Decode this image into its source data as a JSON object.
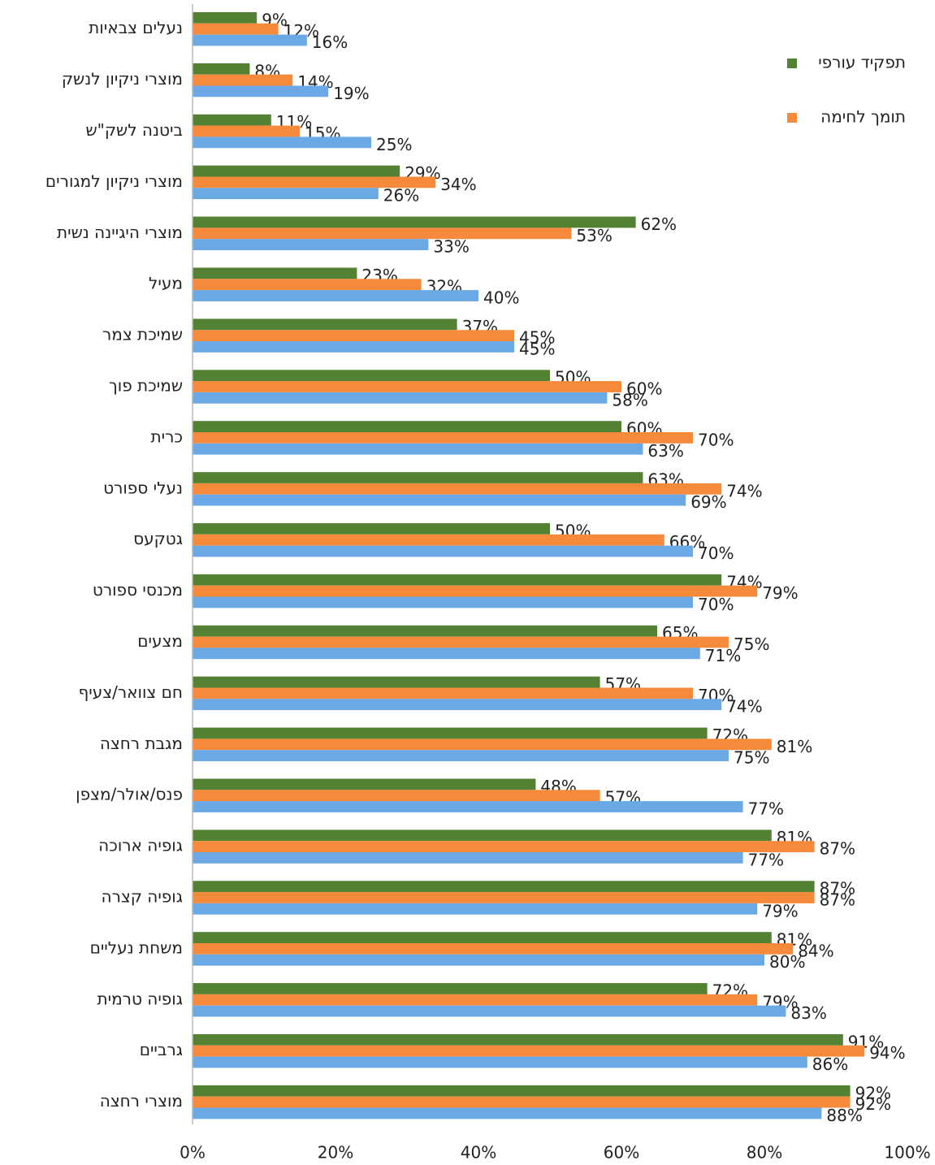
{
  "chart_data": {
    "type": "hbar",
    "categories": [
      "נעלים צבאיות",
      "מוצרי ניקיון לנשק",
      "ביטנה לשק\"ש",
      "מוצרי ניקיון למגורים",
      "מוצרי היגיינה נשית",
      "מעיל",
      "שמיכת צמר",
      "שמיכת פוך",
      "כרית",
      "נעלי ספורט",
      "גטקעס",
      "מכנסי ספורט",
      "מצעים",
      "חם צוואר/צעיף",
      "מגבת רחצה",
      "פנס/אולר/מצפן",
      "גופיה ארוכה",
      "גופיה קצרה",
      "משחת נעליים",
      "גופיה טרמית",
      "גרביים",
      "מוצרי רחצה"
    ],
    "series": [
      {
        "name": "תפקיד עורפי",
        "color": "#548235",
        "values": [
          9,
          8,
          11,
          29,
          62,
          23,
          37,
          50,
          60,
          63,
          50,
          74,
          65,
          57,
          72,
          48,
          81,
          87,
          81,
          72,
          91,
          92
        ],
        "value_labels": [
          "9%",
          "8%",
          "11%",
          "29%",
          "62%",
          "23%",
          "37%",
          "50%",
          "60%",
          "63%",
          "50%",
          "74%",
          "65%",
          "57%",
          "72%",
          "48%",
          "81%",
          "87%",
          "81%",
          "72%",
          "91%",
          "92%"
        ]
      },
      {
        "name": "תומך לחימה",
        "color": "#f58a3b",
        "values": [
          12,
          14,
          15,
          34,
          53,
          32,
          45,
          60,
          70,
          74,
          66,
          79,
          75,
          70,
          81,
          57,
          87,
          87,
          84,
          79,
          94,
          92
        ],
        "value_labels": [
          "12%",
          "14%",
          "15%",
          "34%",
          "53%",
          "32%",
          "45%",
          "60%",
          "70%",
          "74%",
          "66%",
          "79%",
          "75%",
          "70%",
          "81%",
          "57%",
          "87%",
          "87%",
          "84%",
          "79%",
          "94%",
          "92%"
        ]
      },
      {
        "color": "#6aa8e6",
        "values": [
          16,
          19,
          25,
          26,
          33,
          40,
          45,
          58,
          63,
          69,
          70,
          70,
          71,
          74,
          75,
          77,
          77,
          79,
          80,
          83,
          86,
          88
        ],
        "value_labels": [
          "16%",
          "19%",
          "25%",
          "26%",
          "33%",
          "40%",
          "45%",
          "58%",
          "63%",
          "69%",
          "70%",
          "70%",
          "71%",
          "74%",
          "75%",
          "77%",
          "77%",
          "79%",
          "80%",
          "83%",
          "86%",
          "88%"
        ]
      }
    ],
    "xlim": [
      0,
      100
    ],
    "xticks": [
      {
        "value": 0,
        "label": "0%"
      },
      {
        "value": 20,
        "label": "20%"
      },
      {
        "value": 40,
        "label": "40%"
      },
      {
        "value": 60,
        "label": "60%"
      },
      {
        "value": 80,
        "label": "80%"
      },
      {
        "value": 100,
        "label": "100%"
      }
    ],
    "legend": "top-right"
  }
}
